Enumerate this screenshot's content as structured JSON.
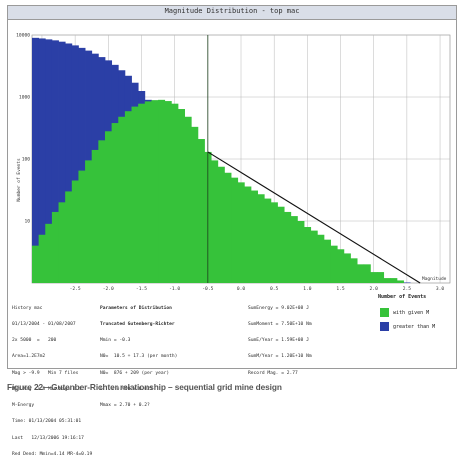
{
  "window": {
    "title": "Magnitude Distribution - top mac"
  },
  "chart_data": {
    "type": "bar",
    "log_y": true,
    "ylim": [
      1,
      10000
    ],
    "xlim": [
      -3.15,
      3.15
    ],
    "y_tick_labels": [
      "10000",
      "1000",
      "100",
      "10"
    ],
    "x_tick_labels": [
      "-2.5",
      "-2.0",
      "-1.5",
      "-1.0",
      "-0.5",
      "0.0",
      "0.5",
      "1.0",
      "1.5",
      "2.0",
      "2.5",
      "3.0"
    ],
    "ylabel": "Number of Events",
    "xlabel": "Magnitude",
    "x": [
      -3.1,
      -3.0,
      -2.9,
      -2.8,
      -2.7,
      -2.6,
      -2.5,
      -2.4,
      -2.3,
      -2.2,
      -2.1,
      -2.0,
      -1.9,
      -1.8,
      -1.7,
      -1.6,
      -1.5,
      -1.4,
      -1.3,
      -1.2,
      -1.1,
      -1.0,
      -0.9,
      -0.8,
      -0.7,
      -0.6,
      -0.5,
      -0.4,
      -0.3,
      -0.2,
      -0.1,
      0.0,
      0.1,
      0.2,
      0.3,
      0.4,
      0.5,
      0.6,
      0.7,
      0.8,
      0.9,
      1.0,
      1.1,
      1.2,
      1.3,
      1.4,
      1.5,
      1.6,
      1.7,
      1.8,
      1.9,
      2.0,
      2.1,
      2.2,
      2.3,
      2.4,
      2.5,
      2.6
    ],
    "series": [
      {
        "name": "with given M",
        "color": "#36c23a",
        "values": [
          4,
          6,
          9,
          14,
          20,
          30,
          45,
          65,
          95,
          140,
          200,
          280,
          380,
          480,
          590,
          700,
          780,
          850,
          890,
          900,
          860,
          780,
          640,
          480,
          330,
          210,
          130,
          95,
          75,
          60,
          50,
          42,
          36,
          31,
          27,
          23,
          20,
          17,
          14,
          12,
          10,
          8,
          7,
          6,
          5,
          4,
          3.5,
          3,
          2.5,
          2,
          2,
          1.5,
          1.5,
          1.2,
          1.2,
          1.1,
          1,
          1
        ]
      },
      {
        "name": "greater than M",
        "color": "#2b3fa6",
        "values": [
          9000,
          8800,
          8500,
          8200,
          7800,
          7300,
          6800,
          6200,
          5600,
          5000,
          4400,
          3900,
          3300,
          2700,
          2200,
          1700,
          1250,
          900,
          620,
          420,
          280,
          200,
          160,
          130,
          110,
          95,
          82,
          70,
          60,
          51,
          43,
          36,
          30,
          25,
          21,
          18,
          15,
          13,
          11,
          9,
          7.5,
          6.3,
          5.2,
          4.4,
          3.7,
          3.1,
          2.6,
          2.2,
          1.9,
          1.6,
          1.45,
          1.3,
          1.2,
          1.15,
          1.1,
          1.05,
          1.02,
          1
        ]
      }
    ],
    "fit_line": {
      "x": [
        -0.5,
        2.7
      ],
      "y": [
        130,
        1
      ]
    },
    "grid": true,
    "legend": {
      "title": "Number of Events",
      "position": "bottom-right"
    }
  },
  "info": {
    "block1": [
      "History mac",
      "01/13/2004 - 01/08/2007",
      "2x 5000  =   200",
      "Area=1.2E7m2",
      "Mag > -9.9   Min 7 files",
      "Min.Mag -2.8 Max.Mag= 2.4",
      "M-Energy",
      "Time: 01/13/2004 05:31:01",
      "Last   12/13/2006 19:16:17",
      "Red Dend: Mmin=4.14 MR-4=0.19"
    ],
    "block2": [
      "Parameters of Distribution",
      "Truncated Gutenberg-Richter",
      "Mmin = -0.3",
      "N0=  10.5 + 17.3 (per month)",
      "N0=  876 + 209 (per year)",
      "b   = 0.990 + 0.021",
      "Mmax = 2.70 + 0.2?"
    ],
    "block3": [
      "SumEnergy = 9.02E+08 J",
      "SumMoment = 7.50E+10 Nm",
      "SumE/Year = 1.59E+08 J",
      "SumM/Year = 1.20E+10 Nm",
      "Record Mag. = 2.77"
    ]
  },
  "caption": "Figure 22—Gutenber-Richter relationship – sequential grid mine design"
}
